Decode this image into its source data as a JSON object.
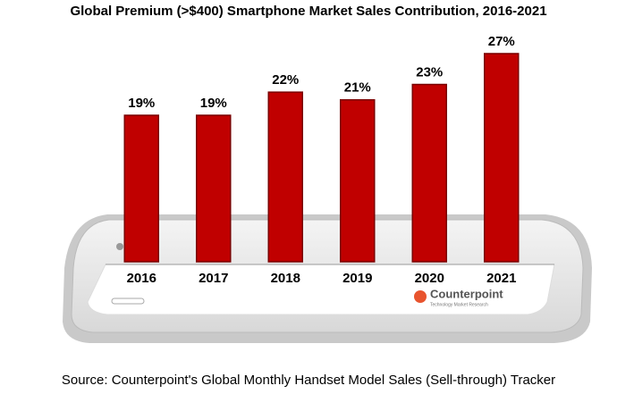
{
  "chart_data": {
    "type": "bar",
    "title": "Global Premium (>$400) Smartphone Market Sales Contribution, 2016-2021",
    "categories": [
      "2016",
      "2017",
      "2018",
      "2019",
      "2020",
      "2021"
    ],
    "values": [
      19,
      19,
      22,
      21,
      23,
      27
    ],
    "value_labels": [
      "19%",
      "19%",
      "22%",
      "21%",
      "23%",
      "27%"
    ],
    "color": "#c00000",
    "source": "Source: Counterpoint's Global Monthly Handset Model Sales (Sell-through) Tracker",
    "logo": {
      "name": "Counterpoint",
      "tagline": "Technology Market Research"
    }
  }
}
